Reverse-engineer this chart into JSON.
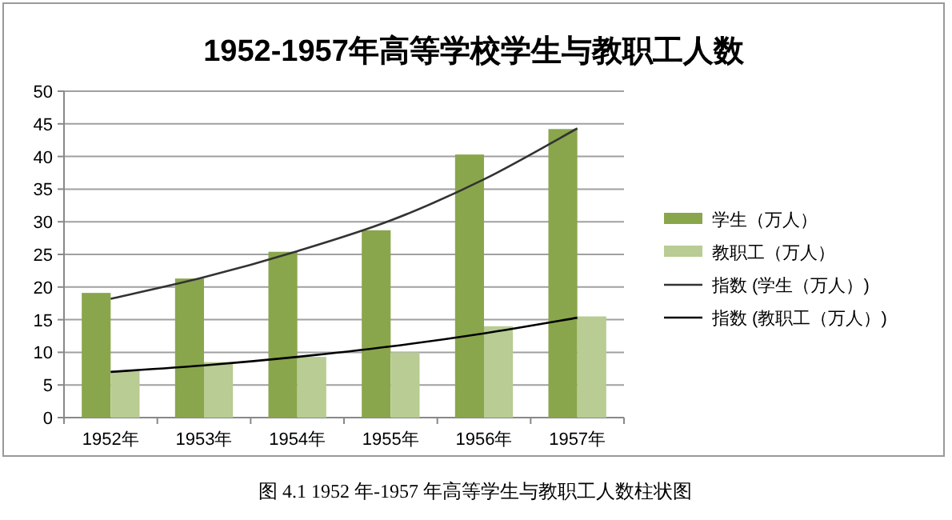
{
  "chart_data": {
    "type": "bar",
    "title": "1952-1957年高等学校学生与教职工人数",
    "categories": [
      "1952年",
      "1953年",
      "1954年",
      "1955年",
      "1956年",
      "1957年"
    ],
    "series": [
      {
        "name": "学生（万人）",
        "color": "#8aa64c",
        "values": [
          19.1,
          21.3,
          25.4,
          28.7,
          40.3,
          44.2
        ]
      },
      {
        "name": "教职工（万人）",
        "color": "#b8cc93",
        "values": [
          7.1,
          8.5,
          9.3,
          10.0,
          14.0,
          15.5
        ]
      },
      {
        "name": "指数 (学生（万人）)",
        "type": "line",
        "color": "#333333",
        "values": [
          18.2,
          21.5,
          25.5,
          30.2,
          36.5,
          44.3
        ]
      },
      {
        "name": "指数 (教职工（万人）)",
        "type": "line",
        "color": "#000000",
        "values": [
          7.0,
          8.0,
          9.3,
          10.9,
          12.9,
          15.3
        ]
      }
    ],
    "ylim": [
      0,
      50
    ],
    "yticks": [
      0,
      5,
      10,
      15,
      20,
      25,
      30,
      35,
      40,
      45,
      50
    ],
    "grid": "y",
    "legend": "right",
    "marker": "none",
    "line_style": "solid",
    "annotations": [
      "图 4.1  1952 年-1957 年高等学生与教职工人数柱状图"
    ]
  }
}
